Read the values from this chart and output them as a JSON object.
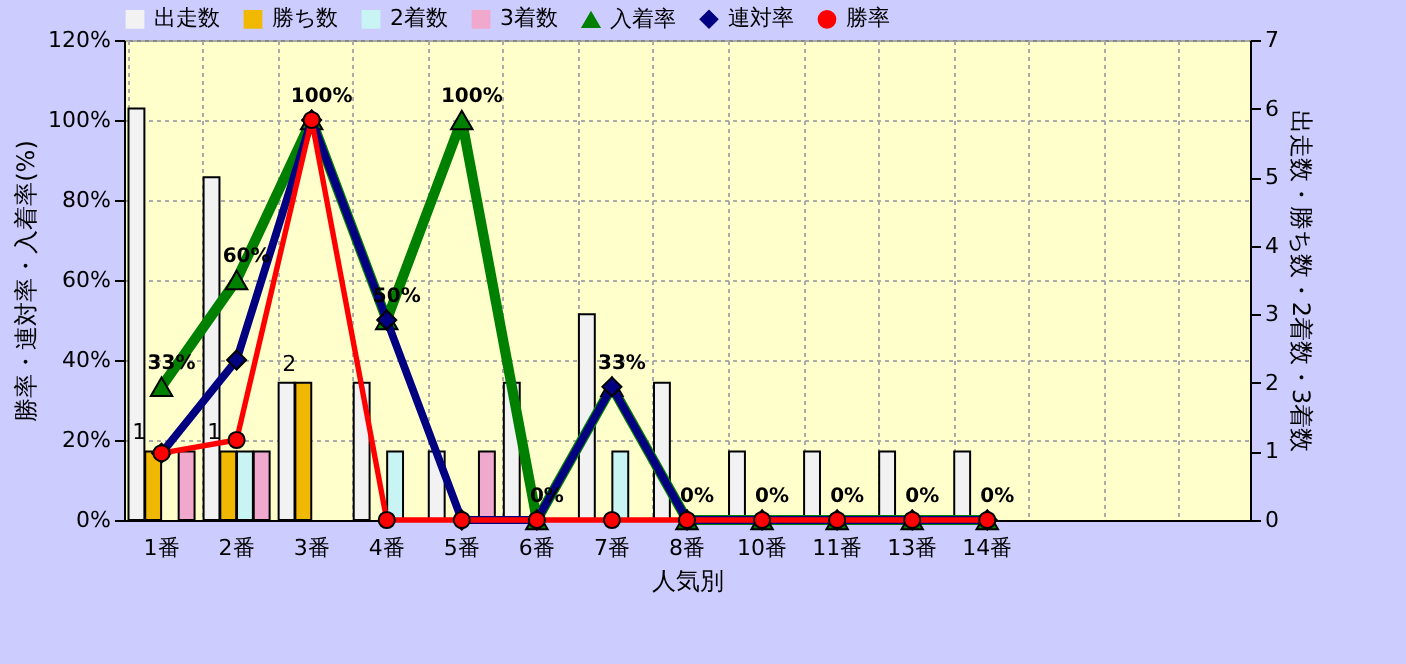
{
  "chart_data": {
    "type": "bar",
    "xlabel": "人気別",
    "ylabel": "勝率・連対率・入着率(%)",
    "y2label": "出走数・勝ち数・2着数・3着数",
    "categories": [
      "1番",
      "2番",
      "3番",
      "4番",
      "5番",
      "6番",
      "7番",
      "8番",
      "10番",
      "11番",
      "13番",
      "14番",
      null,
      null,
      null
    ],
    "series": [
      {
        "name": "出走数",
        "axis": "y2",
        "color": "#f2f2f2",
        "values": [
          6,
          5,
          2,
          2,
          1,
          2,
          3,
          2,
          1,
          1,
          1,
          1,
          null,
          null,
          null
        ]
      },
      {
        "name": "勝ち数",
        "axis": "y2",
        "color": "#f0b800",
        "values": [
          1,
          1,
          2,
          null,
          null,
          null,
          null,
          null,
          null,
          null,
          null,
          null,
          null,
          null,
          null
        ],
        "value_labels": [
          "1",
          "1",
          "2",
          null,
          null,
          null,
          null,
          null,
          null,
          null,
          null,
          null,
          null,
          null,
          null
        ]
      },
      {
        "name": "2着数",
        "axis": "y2",
        "color": "#c8f4f4",
        "values": [
          null,
          1,
          null,
          1,
          null,
          null,
          1,
          null,
          null,
          null,
          null,
          null,
          null,
          null,
          null
        ]
      },
      {
        "name": "3着数",
        "axis": "y2",
        "color": "#f0a8cc",
        "values": [
          1,
          1,
          null,
          null,
          1,
          null,
          null,
          null,
          null,
          null,
          null,
          null,
          null,
          null,
          null
        ]
      },
      {
        "name": "入着率",
        "type": "line",
        "axis": "y",
        "color": "#008000",
        "marker": "triangle",
        "values": [
          33.3,
          60,
          100,
          50,
          100,
          0,
          33.3,
          0,
          0,
          0,
          0,
          0,
          null,
          null,
          null
        ],
        "value_labels": [
          "33%",
          "60%",
          "100%",
          "50%",
          "100%",
          "0%",
          "33%",
          "0%",
          "0%",
          "0%",
          "0%",
          "0%",
          null,
          null,
          null
        ]
      },
      {
        "name": "連対率",
        "type": "line",
        "axis": "y",
        "color": "#000080",
        "marker": "diamond",
        "values": [
          16.7,
          40,
          100,
          50,
          0,
          0,
          33.3,
          0,
          0,
          0,
          0,
          0,
          null,
          null,
          null
        ]
      },
      {
        "name": "勝率",
        "type": "line",
        "axis": "y",
        "color": "#ff0000",
        "marker": "circle",
        "values": [
          16.7,
          20,
          100,
          0,
          0,
          0,
          0,
          0,
          0,
          0,
          0,
          0,
          null,
          null,
          null
        ]
      }
    ],
    "ylim": [
      0,
      120
    ],
    "yticks": [
      {
        "value": 0,
        "label": "0%"
      },
      {
        "value": 20,
        "label": "20%"
      },
      {
        "value": 40,
        "label": "40%"
      },
      {
        "value": 60,
        "label": "60%"
      },
      {
        "value": 80,
        "label": "80%"
      },
      {
        "value": 100,
        "label": "100%"
      },
      {
        "value": 120,
        "label": "120%"
      }
    ],
    "y2lim": [
      0,
      7
    ],
    "y2ticks": [
      0,
      1,
      2,
      3,
      4,
      5,
      6,
      7
    ],
    "grid": true,
    "legend": "top",
    "line_style": "solid"
  }
}
